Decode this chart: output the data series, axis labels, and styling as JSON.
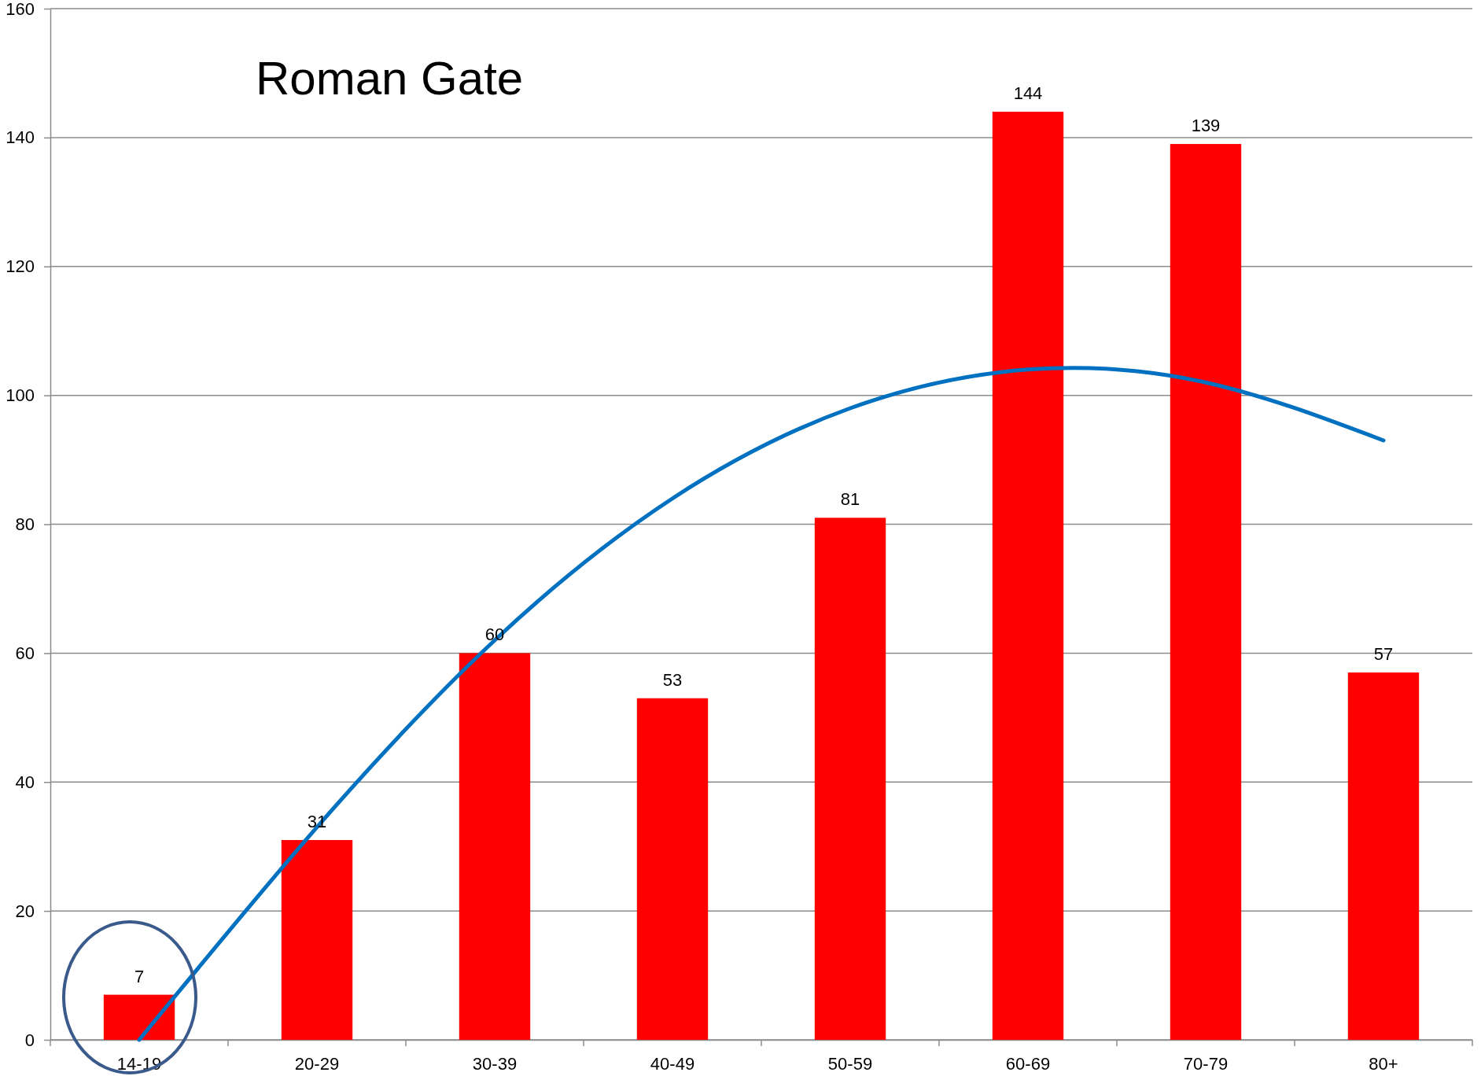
{
  "chart_data": {
    "type": "bar",
    "title": "Roman Gate",
    "categories": [
      "14-19",
      "20-29",
      "30-39",
      "40-49",
      "50-59",
      "60-69",
      "70-79",
      "80+"
    ],
    "series": [
      {
        "color": "#ff0000",
        "values": [
          7,
          31,
          60,
          53,
          81,
          144,
          139,
          57
        ],
        "value_labels": [
          "7",
          "31",
          "60",
          "53",
          "81",
          "144",
          "139",
          "57"
        ]
      },
      {
        "type": "line",
        "color": "#0070c0",
        "values": [
          0,
          33,
          62,
          84,
          98,
          104,
          102,
          93
        ]
      }
    ],
    "ylim": [
      0,
      160
    ],
    "yticks": [
      0,
      20,
      40,
      60,
      80,
      100,
      120,
      140,
      160
    ],
    "grid": "y"
  }
}
